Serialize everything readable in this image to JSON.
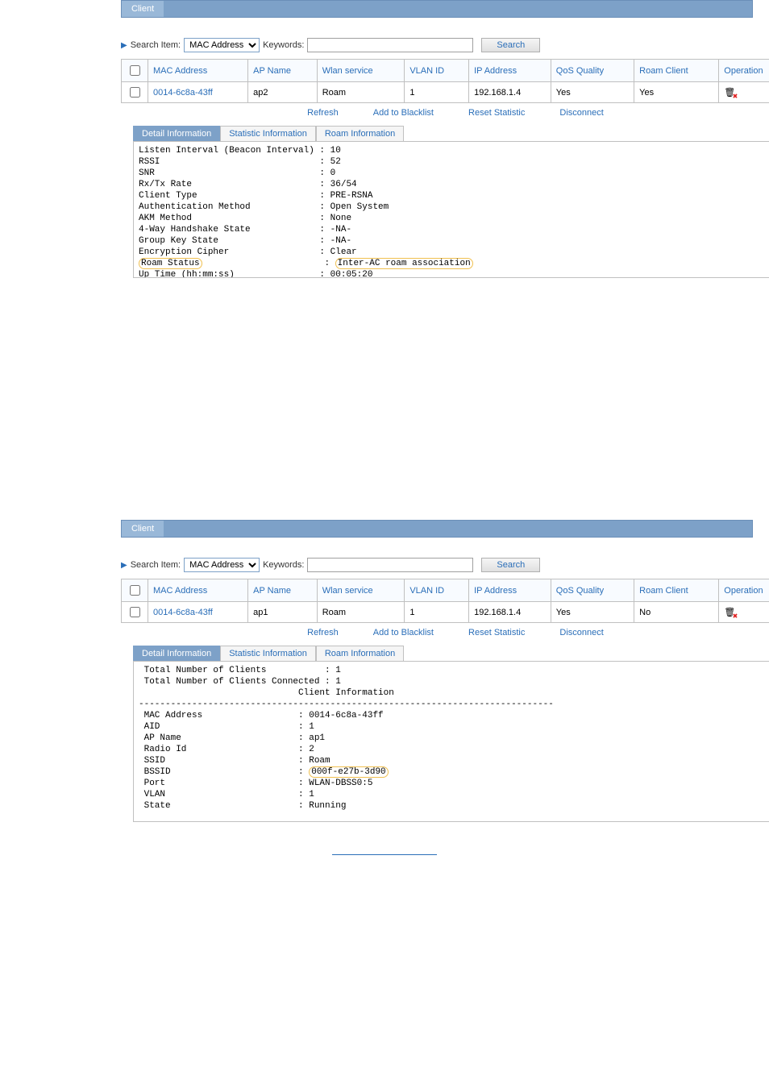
{
  "panel1": {
    "title": "Client",
    "search": {
      "label": "Search Item:",
      "select_value": "MAC Address",
      "keywords_label": "Keywords:",
      "keywords_value": "",
      "button": "Search"
    },
    "columns": [
      "MAC Address",
      "AP Name",
      "Wlan service",
      "VLAN ID",
      "IP Address",
      "QoS Quality",
      "Roam Client",
      "Operation"
    ],
    "row": {
      "mac": "0014-6c8a-43ff",
      "ap": "ap2",
      "wlan": "Roam",
      "vlan": "1",
      "ip": "192.168.1.4",
      "qos": "Yes",
      "roam": "Yes"
    },
    "actions": [
      "Refresh",
      "Add to Blacklist",
      "Reset Statistic",
      "Disconnect"
    ],
    "tabs": [
      "Detail Information",
      "Statistic Information",
      "Roam Information"
    ],
    "active_tab": 0,
    "detail_lines_pre": [
      "Listen Interval (Beacon Interval) : 10",
      "RSSI                              : 52",
      "SNR                               : 0",
      "Rx/Tx Rate                        : 36/54",
      "Client Type                       : PRE-RSNA",
      "Authentication Method             : Open System",
      "AKM Method                        : None",
      "4-Way Handshake State             : -NA-",
      "Group Key State                   : -NA-",
      "Encryption Cipher                 : Clear"
    ],
    "roam_label": "Roam Status",
    "roam_value": "Inter-AC roam association",
    "detail_lines_post": [
      "Up Time (hh:mm:ss)                : 00:05:20",
      "------------------------------------------------------------------------------"
    ]
  },
  "panel2": {
    "title": "Client",
    "search": {
      "label": "Search Item:",
      "select_value": "MAC Address",
      "keywords_label": "Keywords:",
      "keywords_value": "",
      "button": "Search"
    },
    "columns": [
      "MAC Address",
      "AP Name",
      "Wlan service",
      "VLAN ID",
      "IP Address",
      "QoS Quality",
      "Roam Client",
      "Operation"
    ],
    "row": {
      "mac": "0014-6c8a-43ff",
      "ap": "ap1",
      "wlan": "Roam",
      "vlan": "1",
      "ip": "192.168.1.4",
      "qos": "Yes",
      "roam": "No"
    },
    "actions": [
      "Refresh",
      "Add to Blacklist",
      "Reset Statistic",
      "Disconnect"
    ],
    "tabs": [
      "Detail Information",
      "Statistic Information",
      "Roam Information"
    ],
    "active_tab": 0,
    "detail_lines_pre": [
      " Total Number of Clients           : 1",
      " Total Number of Clients Connected : 1",
      "                              Client Information",
      "------------------------------------------------------------------------------",
      " MAC Address                  : 0014-6c8a-43ff",
      " AID                          : 1",
      " AP Name                      : ap1",
      " Radio Id                     : 2",
      " SSID                         : Roam"
    ],
    "bssid_label": " BSSID",
    "bssid_value": "000f-e27b-3d90",
    "detail_lines_post": [
      " Port                         : WLAN-DBSS0:5",
      " VLAN                         : 1",
      " State                        : Running"
    ]
  }
}
